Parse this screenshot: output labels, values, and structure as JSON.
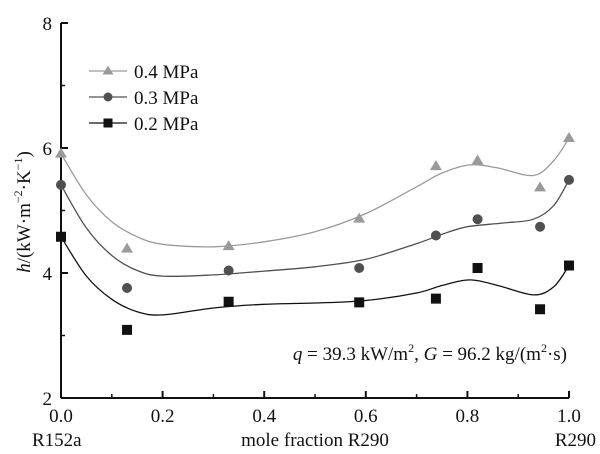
{
  "chart_data": {
    "type": "line",
    "title": "",
    "xlabel": "mole fraction R290",
    "ylabel_parts": {
      "h": "h",
      "unit": "/(kW·m",
      "exp1": "−2",
      "mid": "·K",
      "exp2": "−1",
      "close": ")"
    },
    "ylabel": "h/(kW·m−2·K−1)",
    "xlim": [
      0.0,
      1.0
    ],
    "ylim": [
      2,
      8
    ],
    "x_ticks": [
      "0.0",
      "0.2",
      "0.4",
      "0.6",
      "0.8",
      "1.0"
    ],
    "x_tick_values": [
      0.0,
      0.2,
      0.4,
      0.6,
      0.8,
      1.0
    ],
    "x_minor_tick_values": [
      0.1,
      0.3,
      0.5,
      0.7,
      0.9
    ],
    "y_ticks": [
      "2",
      "4",
      "6",
      "8"
    ],
    "y_tick_values": [
      2,
      4,
      6,
      8
    ],
    "y_minor_tick_values": [
      3,
      5,
      7
    ],
    "x_end_labels": {
      "left": "R152a",
      "right": "R290"
    },
    "grid": false,
    "legend_position": "top-left",
    "annotation": {
      "q_sym": "q",
      "q_text": " = 39.3 kW/m",
      "q_exp": "2",
      "sep": ", ",
      "g_sym": "G",
      "g_text": " = 96.2 kg/(m",
      "g_exp": "2",
      "g_tail": "·s)"
    },
    "series": [
      {
        "name": "0.4 MPa",
        "marker": "triangle",
        "color": "#9a9a9a",
        "x": [
          0.0,
          0.13,
          0.33,
          0.587,
          0.738,
          0.82,
          0.943,
          1.0
        ],
        "y": [
          5.91,
          4.39,
          4.43,
          4.87,
          5.71,
          5.8,
          5.37,
          6.16
        ],
        "fit": {
          "x": [
            0.0,
            0.05,
            0.1,
            0.15,
            0.2,
            0.3,
            0.4,
            0.5,
            0.6,
            0.7,
            0.75,
            0.805,
            0.86,
            0.93,
            0.97,
            1.0
          ],
          "y": [
            5.91,
            5.25,
            4.82,
            4.58,
            4.46,
            4.42,
            4.5,
            4.66,
            4.95,
            5.38,
            5.6,
            5.73,
            5.68,
            5.56,
            5.8,
            6.16
          ]
        }
      },
      {
        "name": "0.3 MPa",
        "marker": "circle",
        "color": "#505050",
        "x": [
          0.0,
          0.13,
          0.33,
          0.587,
          0.738,
          0.82,
          0.943,
          1.0
        ],
        "y": [
          5.41,
          3.76,
          4.04,
          4.08,
          4.6,
          4.86,
          4.74,
          5.49
        ],
        "fit": {
          "x": [
            0.0,
            0.05,
            0.1,
            0.15,
            0.2,
            0.3,
            0.4,
            0.5,
            0.6,
            0.7,
            0.75,
            0.8,
            0.87,
            0.93,
            0.97,
            1.0
          ],
          "y": [
            5.41,
            4.72,
            4.28,
            4.04,
            3.95,
            3.97,
            4.03,
            4.1,
            4.22,
            4.47,
            4.62,
            4.74,
            4.8,
            4.86,
            5.08,
            5.49
          ]
        }
      },
      {
        "name": "0.2 MPa",
        "marker": "square",
        "color": "#111111",
        "x": [
          0.0,
          0.13,
          0.33,
          0.587,
          0.738,
          0.82,
          0.943,
          1.0
        ],
        "y": [
          4.58,
          3.09,
          3.54,
          3.53,
          3.59,
          4.08,
          3.42,
          4.12
        ],
        "fit": {
          "x": [
            0.0,
            0.05,
            0.1,
            0.15,
            0.2,
            0.3,
            0.4,
            0.5,
            0.6,
            0.7,
            0.75,
            0.805,
            0.86,
            0.93,
            0.97,
            1.0
          ],
          "y": [
            4.58,
            3.95,
            3.58,
            3.38,
            3.33,
            3.44,
            3.5,
            3.52,
            3.56,
            3.68,
            3.8,
            3.89,
            3.8,
            3.65,
            3.78,
            4.12
          ]
        }
      }
    ]
  }
}
